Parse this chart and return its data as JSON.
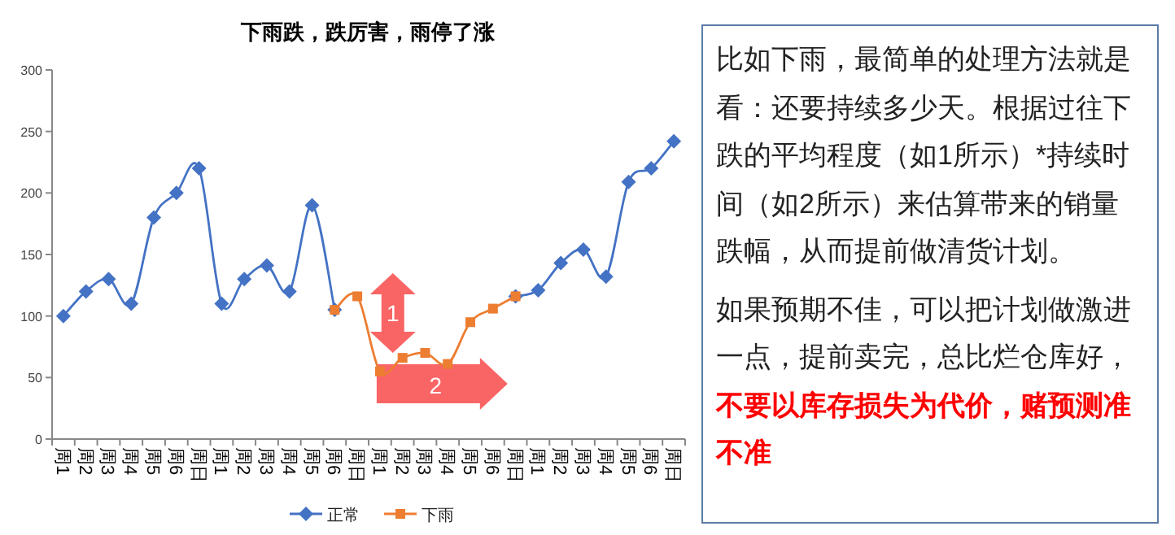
{
  "chart_data": [
    {
      "type": "line",
      "title": "下雨跌，跌厉害，雨停了涨",
      "categories": [
        "周1",
        "周2",
        "周3",
        "周4",
        "周5",
        "周6",
        "周日",
        "周1",
        "周2",
        "周3",
        "周4",
        "周5",
        "周6",
        "周日",
        "周1",
        "周2",
        "周3",
        "周4",
        "周5",
        "周6",
        "周日",
        "周1",
        "周2",
        "周3",
        "周4",
        "周5",
        "周6",
        "周日"
      ],
      "ylim": [
        0,
        300
      ],
      "yticks": [
        0,
        50,
        100,
        150,
        200,
        250,
        300
      ],
      "grid": false,
      "legend": "bottom",
      "series": [
        {
          "name": "正常",
          "color": "#4472c4",
          "marker": "diamond",
          "values": [
            100,
            120,
            130,
            110,
            180,
            200,
            220,
            110,
            130,
            141,
            120,
            190,
            105,
            null,
            null,
            null,
            null,
            null,
            null,
            null,
            116,
            121,
            143,
            154,
            132,
            209,
            220,
            242
          ]
        },
        {
          "name": "下雨",
          "color": "#ed7d31",
          "marker": "square",
          "values": [
            null,
            null,
            null,
            null,
            null,
            null,
            null,
            null,
            null,
            null,
            null,
            null,
            105,
            116,
            55,
            66,
            70,
            61,
            95,
            106,
            116,
            null,
            null,
            null,
            null,
            null,
            null,
            null
          ]
        }
      ],
      "annotations": [
        "1",
        "2"
      ]
    },
    {
      "type": "other",
      "annotations": [
        "比如下雨，最简单的处理方法就是看：还要持续多少天。根据过往下跌的平均程度（如1所示）*持续时间（如2所示）来估算带来的销量跌幅，从而提前做清货计划。",
        "如果预期不佳，可以把计划做激进一点，提前卖完，总比烂仓库好，",
        "**不要以库存损失为代价，赌预测准不准**"
      ]
    }
  ]
}
